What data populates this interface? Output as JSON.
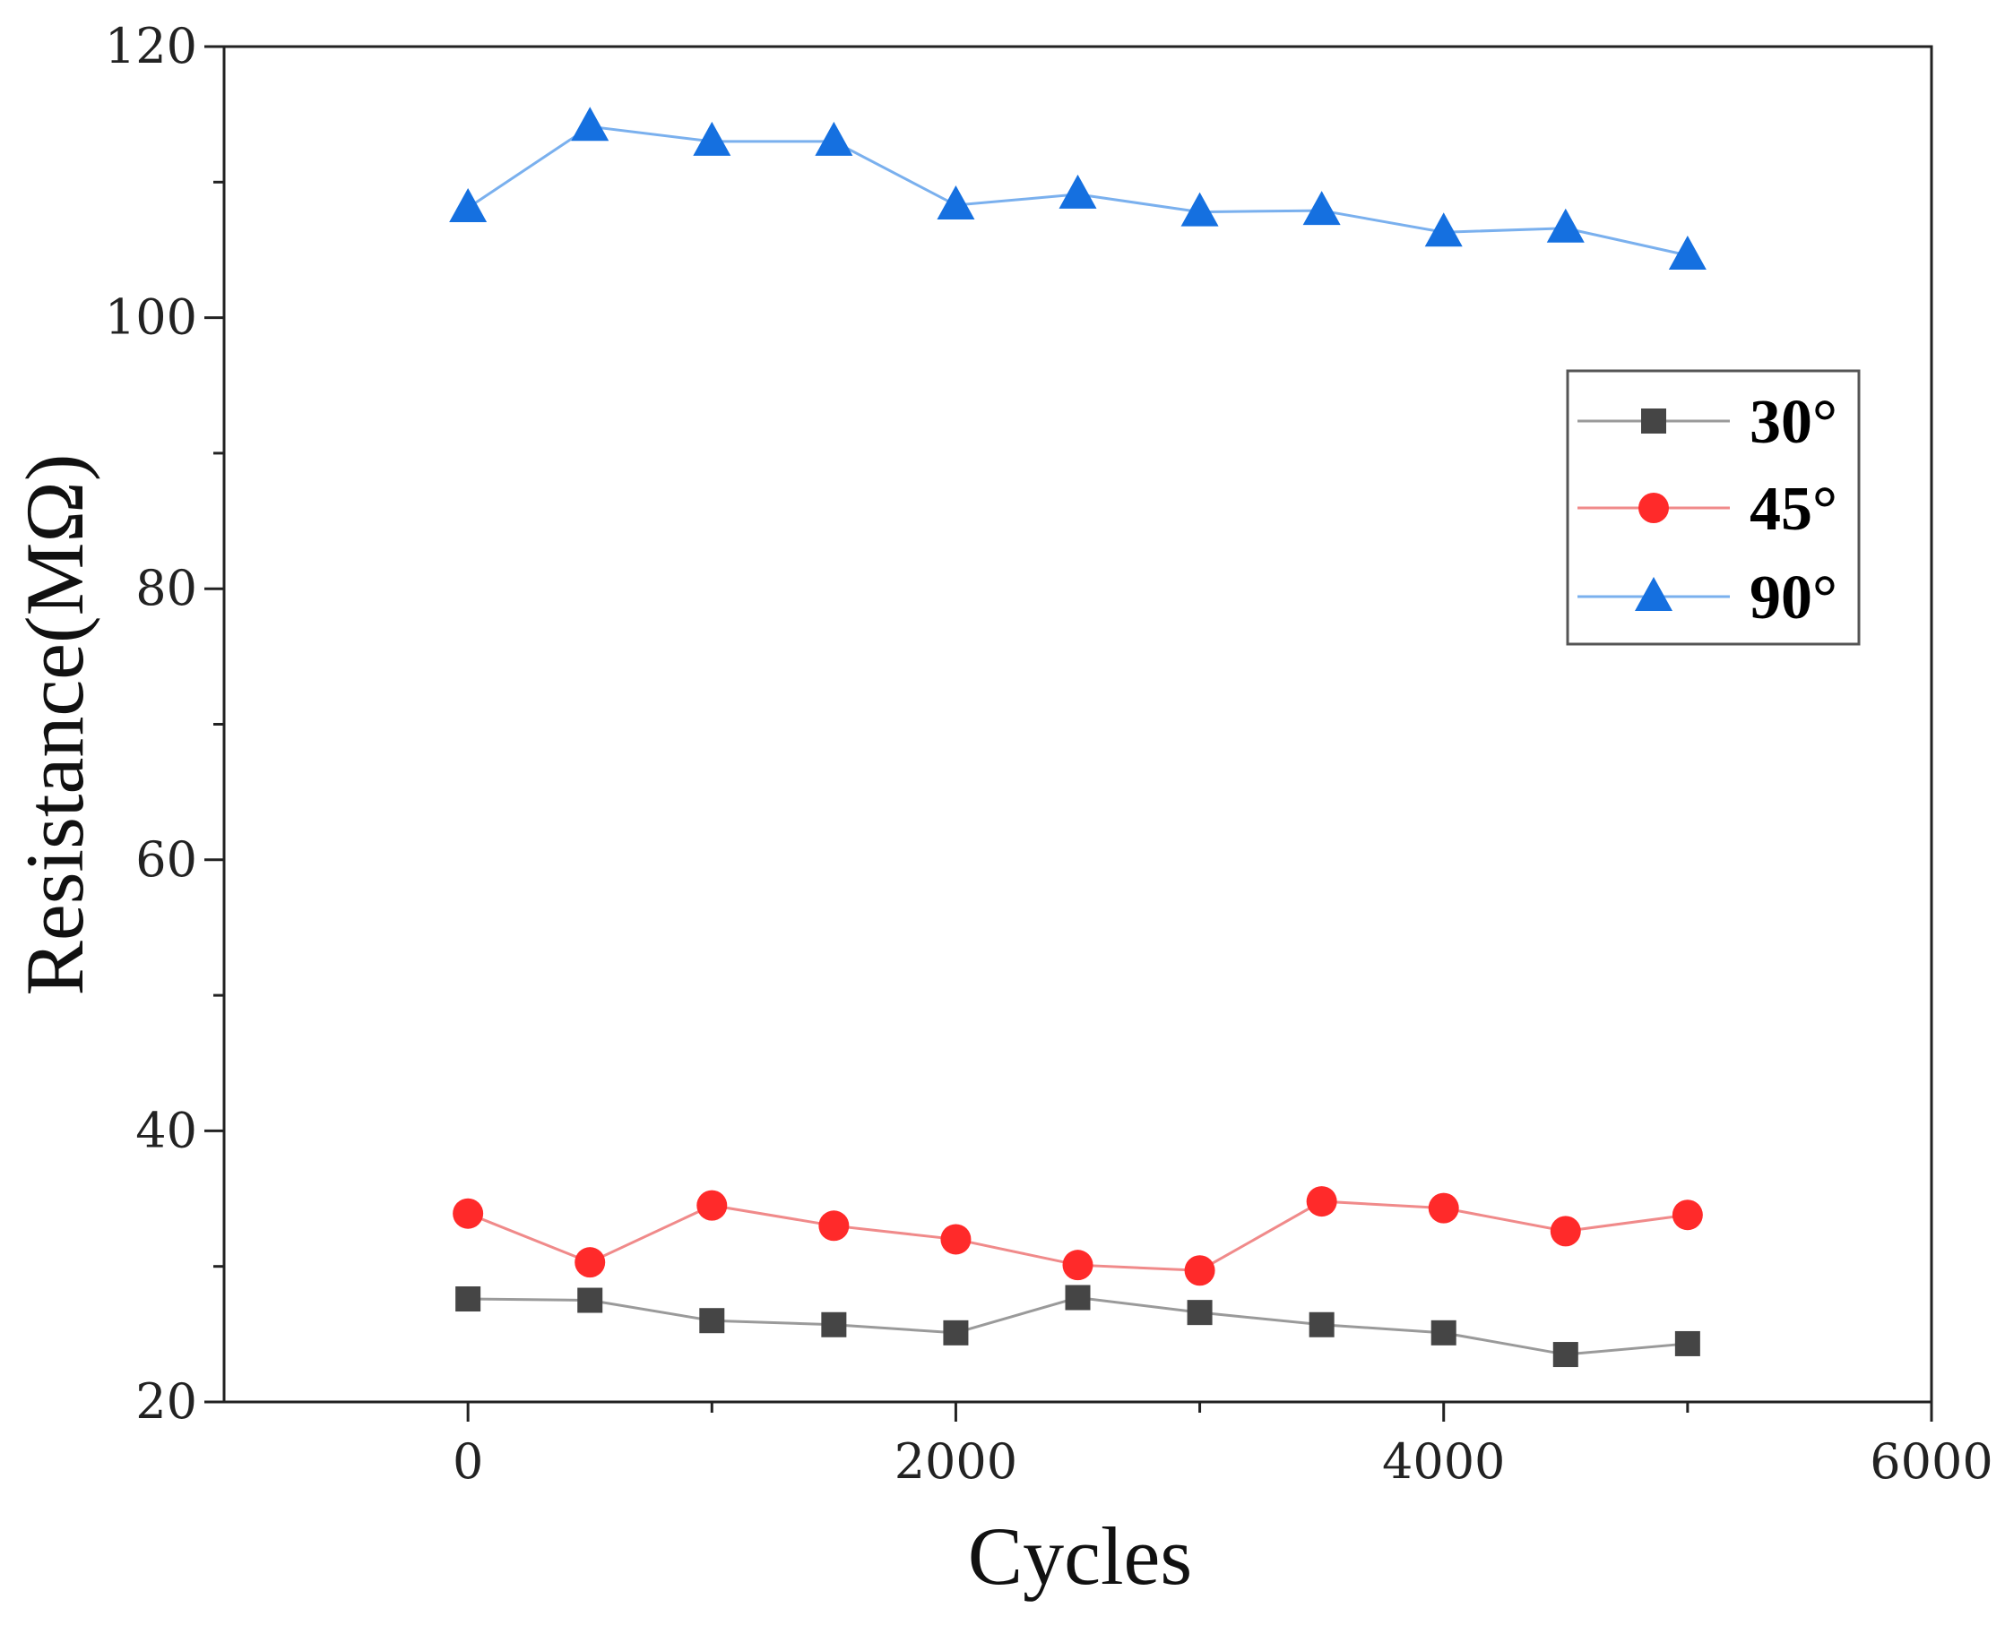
{
  "chart_data": {
    "type": "line",
    "title": "",
    "xlabel": "Cycles",
    "ylabel": "Resistance(MΩ)",
    "xlim": [
      -1000,
      6000
    ],
    "ylim": [
      20,
      120
    ],
    "x_ticks": [
      0,
      2000,
      4000,
      6000
    ],
    "x_tick_labels": [
      "0",
      "2000",
      "4000",
      "6000"
    ],
    "x_minor_ticks": [
      1000,
      3000,
      5000
    ],
    "y_ticks": [
      20,
      40,
      60,
      80,
      100,
      120
    ],
    "y_tick_labels": [
      "20",
      "40",
      "60",
      "80",
      "100",
      "120"
    ],
    "y_minor_ticks": [
      30,
      50,
      70,
      90,
      110
    ],
    "grid": false,
    "legend_position": "top-right",
    "x": [
      0,
      500,
      1000,
      1500,
      2000,
      2500,
      3000,
      3500,
      4000,
      4500,
      5000
    ],
    "series": [
      {
        "name": "30°",
        "marker": "square",
        "line_color": "#9a9a9a",
        "marker_color": "#454545",
        "values": [
          27.6,
          27.5,
          26.0,
          25.7,
          25.1,
          27.7,
          26.6,
          25.7,
          25.1,
          23.5,
          24.3
        ]
      },
      {
        "name": "45°",
        "marker": "circle",
        "line_color": "#f08a8a",
        "marker_color": "#ff2a2a",
        "values": [
          33.9,
          30.3,
          34.5,
          33.0,
          32.0,
          30.1,
          29.7,
          34.8,
          34.3,
          32.6,
          33.8
        ]
      },
      {
        "name": "90°",
        "marker": "triangle",
        "line_color": "#7ab0ee",
        "marker_color": "#1570e0",
        "values": [
          108.1,
          114.1,
          113.0,
          113.0,
          108.3,
          109.1,
          107.8,
          107.9,
          106.3,
          106.6,
          104.6
        ]
      }
    ]
  }
}
